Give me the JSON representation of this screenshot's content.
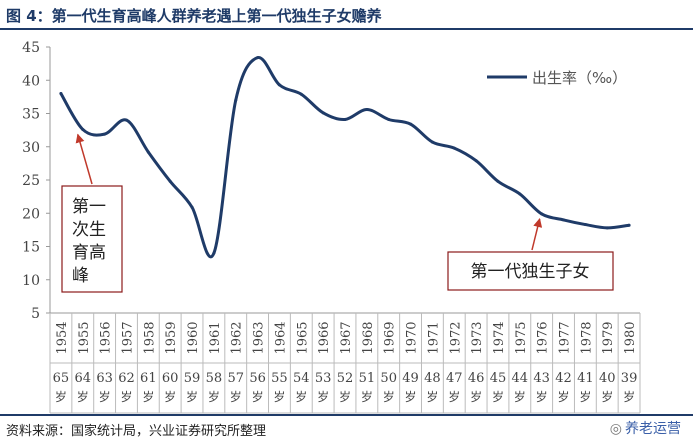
{
  "title": "图 4：第一代生育高峰人群养老遇上第一代独生子女赡养",
  "source": "资料来源：国家统计局，兴业证券研究所整理",
  "watermark": {
    "text": "养老运营",
    "icon": "wechat-icon"
  },
  "colors": {
    "line": "#1f3b68",
    "arrow": "#c0392b",
    "annotation_border": "#8b1a1a",
    "accent": "#1f3b68"
  },
  "chart_data": {
    "type": "line",
    "legend": {
      "label": "出生率（‰）",
      "position": "top-right"
    },
    "ylim": [
      5,
      45
    ],
    "yticks": [
      5,
      10,
      15,
      20,
      25,
      30,
      35,
      40,
      45
    ],
    "grid": false,
    "categories": [
      "1954",
      "1955",
      "1956",
      "1957",
      "1958",
      "1959",
      "1960",
      "1961",
      "1962",
      "1963",
      "1964",
      "1965",
      "1966",
      "1967",
      "1968",
      "1969",
      "1970",
      "1971",
      "1972",
      "1973",
      "1974",
      "1975",
      "1976",
      "1977",
      "1978",
      "1979",
      "1980"
    ],
    "ages": [
      "65岁",
      "64岁",
      "63岁",
      "62岁",
      "61岁",
      "60岁",
      "59岁",
      "58岁",
      "57岁",
      "56岁",
      "55岁",
      "54岁",
      "53岁",
      "52岁",
      "51岁",
      "50岁",
      "49岁",
      "48岁",
      "47岁",
      "46岁",
      "45岁",
      "44岁",
      "43岁",
      "42岁",
      "41岁",
      "40岁",
      "39岁"
    ],
    "values": [
      38.0,
      32.6,
      31.9,
      34.0,
      29.2,
      24.8,
      20.9,
      14.0,
      37.0,
      43.4,
      39.3,
      37.9,
      35.1,
      34.1,
      35.6,
      34.1,
      33.4,
      30.7,
      29.8,
      27.9,
      24.8,
      22.9,
      19.9,
      19.0,
      18.3,
      17.8,
      18.2
    ],
    "annotations": [
      {
        "text_lines": [
          "第一",
          "次生",
          "育高",
          "峰"
        ],
        "target_category": "1955"
      },
      {
        "text_lines": [
          "第一代独生子女"
        ],
        "target_category": "1976"
      }
    ]
  }
}
